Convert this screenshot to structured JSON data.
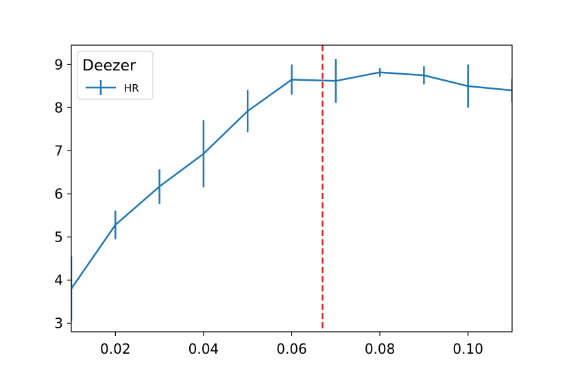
{
  "chart_data": {
    "type": "line",
    "title": "",
    "xlabel": "",
    "ylabel": "",
    "xlim": [
      0.01,
      0.11
    ],
    "ylim": [
      2.8,
      9.45
    ],
    "x_ticks": [
      0.02,
      0.04,
      0.06,
      0.08,
      0.1
    ],
    "x_tick_labels": [
      "0.02",
      "0.04",
      "0.06",
      "0.08",
      "0.10"
    ],
    "y_ticks": [
      3,
      4,
      5,
      6,
      7,
      8,
      9
    ],
    "y_tick_labels": [
      "3",
      "4",
      "5",
      "6",
      "7",
      "8",
      "9"
    ],
    "grid": false,
    "legend": {
      "title": "Deezer",
      "placement": "top-left"
    },
    "series": [
      {
        "name": "HR",
        "color": "#1f77b4",
        "x": [
          0.01,
          0.02,
          0.03,
          0.04,
          0.05,
          0.06,
          0.07,
          0.08,
          0.09,
          0.1,
          0.11
        ],
        "y": [
          3.8,
          5.28,
          6.17,
          6.93,
          7.92,
          8.65,
          8.62,
          8.82,
          8.75,
          8.5,
          8.4
        ],
        "error": [
          0.75,
          0.33,
          0.4,
          0.78,
          0.49,
          0.35,
          0.51,
          0.1,
          0.21,
          0.5,
          0.27
        ]
      }
    ],
    "vertical_line": {
      "x": 0.067,
      "color": "#d62728",
      "style": "dashed"
    }
  }
}
